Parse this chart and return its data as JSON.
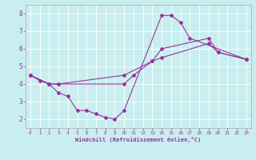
{
  "xlabel": "Windchill (Refroidissement éolien,°C)",
  "bg_color": "#c8eef0",
  "line_color": "#993399",
  "xlim": [
    -0.5,
    23.5
  ],
  "ylim": [
    1.5,
    8.5
  ],
  "yticks": [
    2,
    3,
    4,
    5,
    6,
    7,
    8
  ],
  "xticks": [
    0,
    1,
    2,
    3,
    4,
    5,
    6,
    7,
    8,
    9,
    10,
    11,
    12,
    13,
    14,
    15,
    16,
    17,
    18,
    19,
    20,
    21,
    22,
    23
  ],
  "line1_x": [
    0,
    1,
    2,
    3,
    4,
    5,
    6,
    7,
    8,
    9,
    10,
    14,
    15,
    16,
    17,
    23
  ],
  "line1_y": [
    4.5,
    4.2,
    4.0,
    3.5,
    3.3,
    2.5,
    2.5,
    2.3,
    2.1,
    2.0,
    2.5,
    7.9,
    7.9,
    7.5,
    6.6,
    5.4
  ],
  "line2_x": [
    0,
    2,
    3,
    10,
    11,
    13,
    14,
    19,
    20,
    23
  ],
  "line2_y": [
    4.5,
    4.0,
    4.0,
    4.0,
    4.5,
    5.3,
    6.0,
    6.6,
    5.8,
    5.4
  ],
  "line3_x": [
    0,
    2,
    3,
    10,
    13,
    14,
    19,
    20,
    23
  ],
  "line3_y": [
    4.5,
    4.0,
    4.0,
    4.5,
    5.3,
    5.5,
    6.3,
    5.8,
    5.4
  ]
}
